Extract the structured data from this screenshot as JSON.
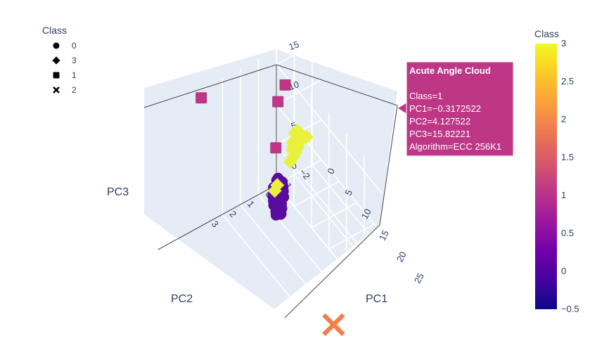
{
  "chart_data": {
    "type": "scatter3d",
    "axes": {
      "x": {
        "label": "PC1",
        "ticks": [
          "0",
          "5",
          "10",
          "15",
          "20",
          "25"
        ],
        "range": [
          0,
          30
        ]
      },
      "y": {
        "label": "PC2",
        "ticks": [
          "−2",
          "−1",
          "0",
          "1",
          "2",
          "3"
        ],
        "range": [
          -2.5,
          3.5
        ]
      },
      "z": {
        "label": "PC3",
        "ticks": [
          "0",
          "5",
          "10",
          "15"
        ],
        "range": [
          0,
          17
        ]
      }
    },
    "legend": {
      "title": "Class",
      "placement": "top-left",
      "items": [
        {
          "label": "0",
          "symbol": "circle"
        },
        {
          "label": "3",
          "symbol": "diamond"
        },
        {
          "label": "1",
          "symbol": "square"
        },
        {
          "label": "2",
          "symbol": "x"
        }
      ]
    },
    "colorbar": {
      "title": "Class",
      "ticks": [
        "3",
        "2.5",
        "2",
        "1.5",
        "1",
        "0.5",
        "0",
        "−0.5"
      ],
      "range": [
        -0.5,
        3
      ]
    },
    "series": [
      {
        "name": "0",
        "symbol": "circle",
        "color": "#5a0c9e",
        "points": [
          [
            2.0,
            0.3,
            2.3
          ],
          [
            2.4,
            0.2,
            2.0
          ],
          [
            2.8,
            0.5,
            1.8
          ],
          [
            3.1,
            0.4,
            2.2
          ],
          [
            3.5,
            0.6,
            1.6
          ],
          [
            3.8,
            0.5,
            2.0
          ],
          [
            4.1,
            0.7,
            1.5
          ],
          [
            4.4,
            0.6,
            1.9
          ],
          [
            4.7,
            0.8,
            1.4
          ],
          [
            5.0,
            0.7,
            1.7
          ],
          [
            5.3,
            0.9,
            1.3
          ],
          [
            5.6,
            0.8,
            1.6
          ],
          [
            5.9,
            1.0,
            1.2
          ],
          [
            6.2,
            0.9,
            1.5
          ],
          [
            6.5,
            1.0,
            1.1
          ],
          [
            2.6,
            0.5,
            2.6
          ],
          [
            3.3,
            0.3,
            2.5
          ],
          [
            4.0,
            0.4,
            2.4
          ],
          [
            4.6,
            0.5,
            2.3
          ],
          [
            5.2,
            0.6,
            2.0
          ],
          [
            3.0,
            0.8,
            1.2
          ],
          [
            3.7,
            0.9,
            1.1
          ],
          [
            4.3,
            1.0,
            1.0
          ],
          [
            5.4,
            1.1,
            0.9
          ],
          [
            6.0,
            1.2,
            0.9
          ],
          [
            2.2,
            0.6,
            1.6
          ],
          [
            6.8,
            1.1,
            1.3
          ]
        ]
      },
      {
        "name": "3",
        "symbol": "diamond",
        "color": "#eaf13a",
        "points": [
          [
            0.4,
            -1.6,
            4.2
          ],
          [
            0.8,
            -1.2,
            5.0
          ],
          [
            1.0,
            -1.0,
            5.4
          ],
          [
            1.2,
            -0.9,
            5.8
          ],
          [
            1.4,
            -0.8,
            5.2
          ],
          [
            1.6,
            -0.7,
            5.6
          ],
          [
            1.8,
            -0.6,
            5.0
          ],
          [
            2.0,
            -0.5,
            4.8
          ],
          [
            1.1,
            -1.1,
            4.6
          ],
          [
            1.5,
            -0.9,
            4.4
          ],
          [
            1.9,
            -0.7,
            4.2
          ],
          [
            2.2,
            -0.5,
            4.0
          ],
          [
            0.9,
            -1.0,
            6.0
          ],
          [
            1.3,
            -0.8,
            6.2
          ],
          [
            1.7,
            -0.6,
            5.4
          ],
          [
            2.4,
            -0.3,
            3.8
          ],
          [
            2.3,
            0.4,
            1.7
          ],
          [
            2.6,
            0.6,
            1.4
          ],
          [
            0.6,
            -1.4,
            4.6
          ]
        ]
      },
      {
        "name": "1",
        "symbol": "square",
        "color": "#bd3786",
        "points": [
          [
            -0.3172522,
            4.127522,
            15.82221
          ],
          [
            2.5,
            0.0,
            13.8
          ],
          [
            3.5,
            0.6,
            13.0
          ],
          [
            7.5,
            1.5,
            10.5
          ]
        ]
      },
      {
        "name": "2",
        "symbol": "x",
        "color": "#f0804b",
        "points": [
          [
            27.5,
            2.2,
            0.0
          ]
        ]
      }
    ],
    "hover": {
      "title": "Acute Angle Cloud",
      "lines": [
        "Class=1",
        "PC1=−0.3172522",
        "PC2=4.127522",
        "PC3=15.82221",
        "Algorithm=ECC 256K1"
      ],
      "color": "#bd3786"
    }
  }
}
